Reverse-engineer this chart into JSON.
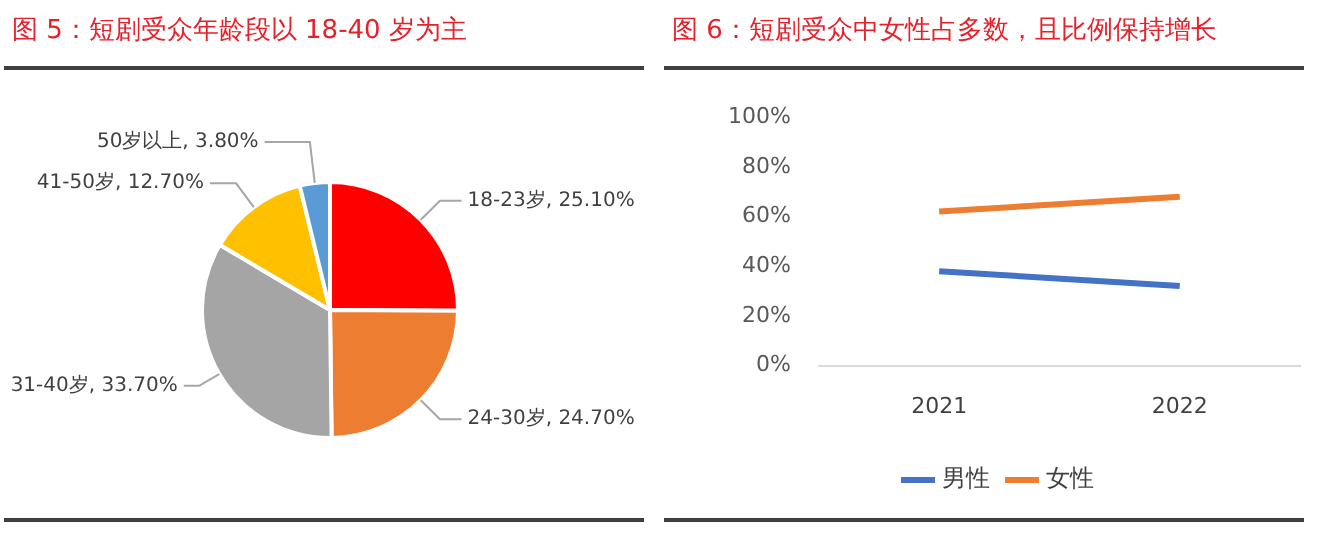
{
  "chart_data": [
    {
      "type": "pie",
      "title": "图 5：短剧受众年龄段以 18-40 岁为主",
      "categories": [
        "18-23岁",
        "24-30岁",
        "31-40岁",
        "41-50岁",
        "50岁以上"
      ],
      "values": [
        25.1,
        24.7,
        33.7,
        12.7,
        3.8
      ],
      "colors": [
        "#ff0000",
        "#ed7d31",
        "#a5a5a5",
        "#ffc000",
        "#5b9bd5"
      ],
      "value_labels": [
        "25.10%",
        "24.70%",
        "33.70%",
        "12.70%",
        "3.80%"
      ]
    },
    {
      "type": "line",
      "title": "图 6：短剧受众中女性占多数，且比例保持增长",
      "categories": [
        "2021",
        "2022"
      ],
      "series": [
        {
          "name": "男性",
          "color": "#4472c4",
          "values": [
            38,
            32
          ]
        },
        {
          "name": "女性",
          "color": "#ed7d31",
          "values": [
            62,
            68
          ]
        }
      ],
      "ylim": [
        0,
        100
      ],
      "yticks": [
        {
          "value": 0,
          "label": "0%"
        },
        {
          "value": 20,
          "label": "20%"
        },
        {
          "value": 40,
          "label": "40%"
        },
        {
          "value": 60,
          "label": "60%"
        },
        {
          "value": 80,
          "label": "80%"
        },
        {
          "value": 100,
          "label": "100%"
        }
      ],
      "grid": false,
      "legend": "bottom"
    }
  ]
}
